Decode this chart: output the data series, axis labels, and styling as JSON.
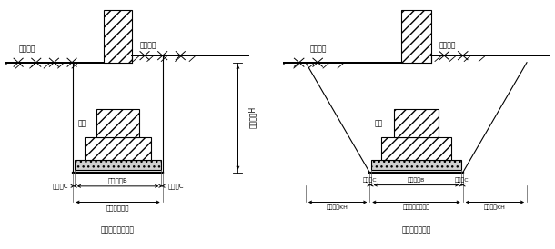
{
  "bg_color": "#ffffff",
  "title1": "不放坡的基槽断面",
  "title2": "放坡的基槽断面",
  "label_outdoor1": "室外地坪",
  "label_indoor1": "室内地坪",
  "label_outdoor2": "室外地坪",
  "label_indoor2": "室内地坪",
  "label_jichi1": "基础",
  "label_jichi2": "基础",
  "label_depth": "开挖深度H",
  "label_workC_left1": "工作面C",
  "label_workC_right1": "工作面C",
  "label_workC_left2": "工作面C",
  "label_workC_right2": "工作面C",
  "label_width_B1": "基础宽度B",
  "label_width_B2": "基础宽度B",
  "label_open_width1": "基槽开挖宽度",
  "label_open_width2": "基槽基底开挖宽度",
  "label_slope_left": "放坡宽度KH",
  "label_slope_right": "放坡宽度KH",
  "fontsize": 5.5,
  "linewidth": 0.8
}
